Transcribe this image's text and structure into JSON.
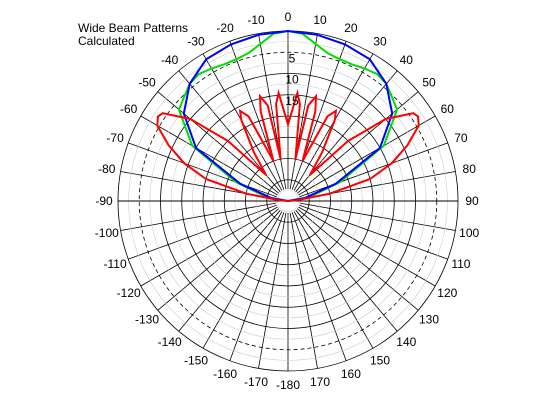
{
  "chart_data": {
    "type": "polar",
    "title": "Wide Beam Patterns",
    "subtitle": "Calculated",
    "angle_ticks": [
      "-10",
      "-20",
      "-30",
      "-40",
      "-50",
      "-60",
      "-70",
      "-80",
      "-90",
      "-100",
      "-110",
      "-120",
      "-130",
      "-140",
      "-150",
      "-160",
      "-170",
      "-180",
      "0",
      "10",
      "20",
      "30",
      "40",
      "50",
      "60",
      "70",
      "80",
      "90",
      "100",
      "110",
      "120",
      "130",
      "140",
      "150",
      "160",
      "170"
    ],
    "angle_tick_values": [
      -10,
      -20,
      -30,
      -40,
      -50,
      -60,
      -70,
      -80,
      -90,
      -100,
      -110,
      -120,
      -130,
      -140,
      -150,
      -160,
      -170,
      180,
      0,
      10,
      20,
      30,
      40,
      50,
      60,
      70,
      80,
      90,
      100,
      110,
      120,
      130,
      140,
      150,
      160,
      170
    ],
    "radial_ticks": [
      "5",
      "10",
      "15"
    ],
    "radial_tick_values": [
      -5,
      -10,
      -15
    ],
    "r_axis": {
      "min": -40,
      "max": 0,
      "unit": "dB",
      "ring_step": 5,
      "dashed_ring": -5
    },
    "grid": true,
    "series": [
      {
        "color": "#00dd00",
        "theta": [
          -90,
          -80,
          -70,
          -60,
          -50,
          -40,
          -35,
          -30,
          -25,
          -20,
          -15,
          -10,
          -5,
          0,
          5,
          10,
          15,
          20,
          25,
          30,
          35,
          40,
          50,
          60,
          70,
          80,
          90
        ],
        "r": [
          -40,
          -35,
          -27,
          -14,
          -6.5,
          -4,
          -3.5,
          -4,
          -4.5,
          -4.5,
          -4,
          -2.5,
          -0.5,
          0,
          -0.5,
          -2.5,
          -4,
          -4.5,
          -4.5,
          -4,
          -3.5,
          -4,
          -6.5,
          -14,
          -27,
          -35,
          -40
        ]
      },
      {
        "color": "#0000ff",
        "theta": [
          -90,
          -80,
          -70,
          -60,
          -50,
          -40,
          -30,
          -20,
          -10,
          0,
          10,
          20,
          30,
          40,
          50,
          60,
          70,
          80,
          90
        ],
        "r": [
          -40,
          -36,
          -28,
          -15,
          -8,
          -4,
          -1.5,
          -0.8,
          -0.3,
          0,
          -0.3,
          -0.8,
          -1.5,
          -4,
          -8,
          -15,
          -28,
          -36,
          -40
        ]
      },
      {
        "color": "#ff0000",
        "theta": [
          -90,
          -85,
          -80,
          -75,
          -70,
          -65,
          -60,
          -57,
          -55,
          -50,
          -45,
          -40,
          -35,
          -30,
          -28,
          -25,
          -20,
          -17,
          -15,
          -12,
          -10,
          -7,
          -5,
          0,
          5,
          7,
          10,
          12,
          15,
          17,
          20,
          25,
          28,
          30,
          35,
          40,
          45,
          50,
          55,
          57,
          60,
          65,
          70,
          75,
          80,
          85,
          90
        ],
        "r": [
          -40,
          -38,
          -30,
          -20,
          -14,
          -9,
          -4.5,
          -3.5,
          -4,
          -10,
          -20,
          -32,
          -26,
          -18,
          -16,
          -18,
          -30,
          -18,
          -14.5,
          -17,
          -30,
          -17,
          -14.5,
          -22,
          -14.5,
          -17,
          -30,
          -17,
          -14.5,
          -18,
          -30,
          -18,
          -16,
          -18,
          -26,
          -32,
          -20,
          -10,
          -4,
          -3.5,
          -4.5,
          -9,
          -14,
          -20,
          -30,
          -38,
          -40
        ]
      }
    ]
  }
}
